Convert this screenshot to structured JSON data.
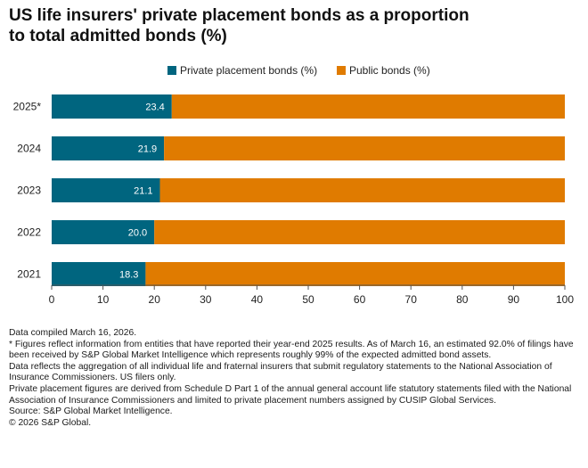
{
  "title_lines": [
    "US life insurers' private placement bonds as a proportion",
    "to total admitted bonds (%)"
  ],
  "colors": {
    "private": "#00657F",
    "public": "#E07B00",
    "axis": "#555555"
  },
  "chart_data": {
    "type": "bar",
    "orientation": "horizontal",
    "stacked": true,
    "categories": [
      "2025*",
      "2024",
      "2023",
      "2022",
      "2021"
    ],
    "series": [
      {
        "name": "Private placement bonds (%)",
        "values": [
          23.4,
          21.9,
          21.1,
          20.0,
          18.3
        ]
      },
      {
        "name": "Public bonds (%)",
        "values": [
          76.6,
          78.1,
          78.9,
          80.0,
          81.7
        ]
      }
    ],
    "data_labels": [
      "23.4",
      "21.9",
      "21.1",
      "20.0",
      "18.3"
    ],
    "xlim": [
      0,
      100
    ],
    "xticks": [
      "0",
      "10",
      "20",
      "30",
      "40",
      "50",
      "60",
      "70",
      "80",
      "90",
      "100"
    ],
    "legend": [
      "Private placement bonds (%)",
      "Public bonds (%)"
    ],
    "legend_position": "top-center",
    "grid": false
  },
  "notes": [
    "Data compiled March 16, 2026.",
    "* Figures reflect information from entities that have reported their year-end 2025 results. As of March 16, an estimated 92.0% of filings have been received by S&P Global Market Intelligence which represents roughly 99% of the expected admitted bond assets.",
    "Data reflects the aggregation of all individual life and fraternal insurers that submit regulatory statements to the National Association of Insurance Commissioners. US filers only.",
    "Private placement figures are derived from Schedule D Part 1 of the annual general account life statutory statements filed with the National Association of Insurance Commissioners and limited to private placement numbers assigned by CUSIP Global Services.",
    "Source: S&P Global Market Intelligence.",
    "© 2026 S&P Global."
  ]
}
